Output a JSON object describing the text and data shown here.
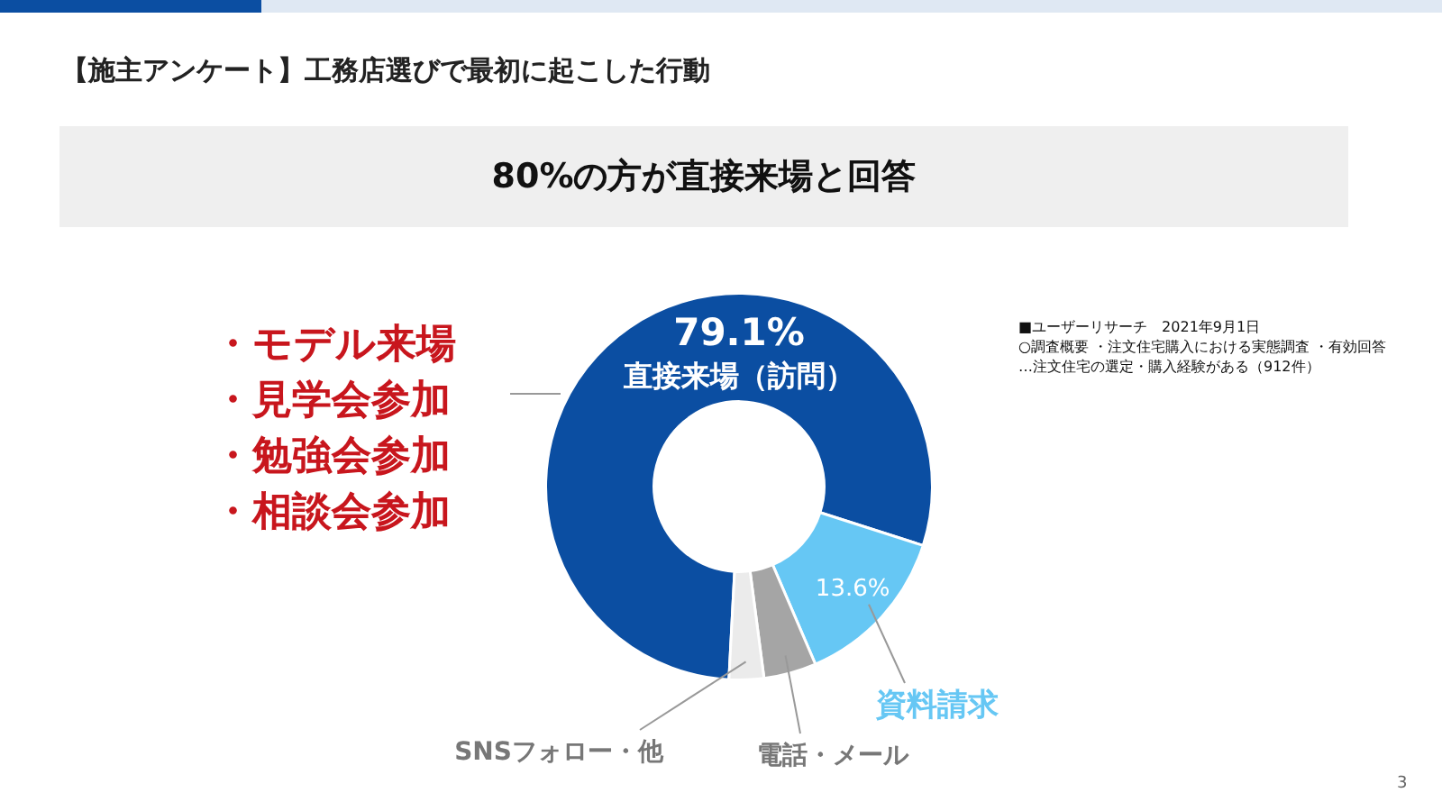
{
  "chart_data": {
    "type": "donut",
    "title": "【施主アンケート】工務店選びで最初に起こした行動",
    "subtitle": "80%の方が直接来場と回答",
    "categories": [
      "直接来場（訪問）",
      "資料請求",
      "電話・メール",
      "SNSフォロー・他"
    ],
    "values": [
      79.1,
      13.6,
      4.4,
      2.9
    ],
    "colors": [
      "#0b4ea2",
      "#66c7f4",
      "#a5a5a5",
      "#ebebeb"
    ],
    "value_labels": [
      "79.1%",
      "13.6%",
      null,
      null
    ],
    "annotations": [
      "・モデル来場",
      "・見学会参加",
      "・勉強会参加",
      "・相談会参加",
      "■ユーザーリサーチ　2021年9月1日",
      "○調査概要 ・注文住宅購入における実態調査 ・有効回答",
      "…注文住宅の選定・購入経験がある（912件）",
      "3"
    ]
  }
}
